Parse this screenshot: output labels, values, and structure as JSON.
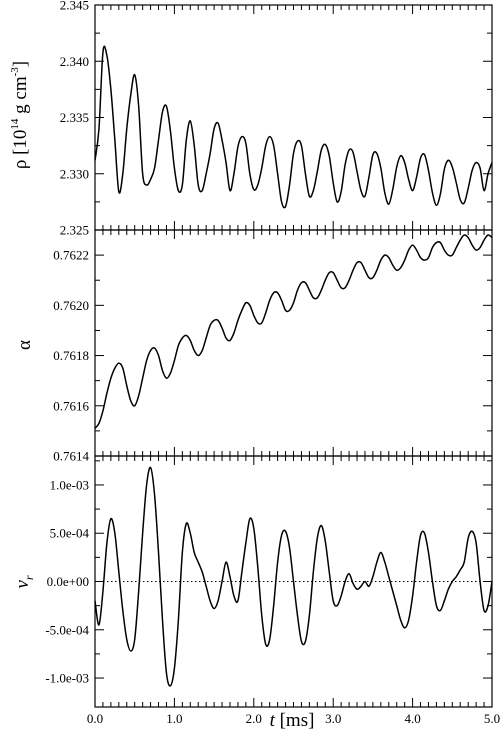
{
  "chart_data": [
    {
      "type": "line",
      "ylabel": "ρ [10¹⁴ g cm⁻³]",
      "ylabel_parts": {
        "base": "ρ [10",
        "exp1": "14",
        "mid": " g cm",
        "exp2": "-3",
        "end": "]"
      },
      "ylim": [
        2.325,
        2.345
      ],
      "yticks": [
        "2.325",
        "2.330",
        "2.335",
        "2.340",
        "2.345"
      ],
      "xlim": [
        0,
        5
      ],
      "x": [
        0.0,
        0.05,
        0.1,
        0.15,
        0.2,
        0.25,
        0.3,
        0.35,
        0.4,
        0.45,
        0.5,
        0.55,
        0.6,
        0.65,
        0.7,
        0.75,
        0.8,
        0.85,
        0.9,
        0.95,
        1.0,
        1.05,
        1.1,
        1.15,
        1.2,
        1.25,
        1.3,
        1.35,
        1.4,
        1.45,
        1.5,
        1.55,
        1.6,
        1.65,
        1.7,
        1.75,
        1.8,
        1.85,
        1.9,
        1.95,
        2.0,
        2.05,
        2.1,
        2.15,
        2.2,
        2.25,
        2.3,
        2.35,
        2.4,
        2.45,
        2.5,
        2.55,
        2.6,
        2.65,
        2.7,
        2.75,
        2.8,
        2.85,
        2.9,
        2.95,
        3.0,
        3.05,
        3.1,
        3.15,
        3.2,
        3.25,
        3.3,
        3.35,
        3.4,
        3.45,
        3.5,
        3.55,
        3.6,
        3.65,
        3.7,
        3.75,
        3.8,
        3.85,
        3.9,
        3.95,
        4.0,
        4.05,
        4.1,
        4.15,
        4.2,
        4.25,
        4.3,
        4.35,
        4.4,
        4.45,
        4.5,
        4.55,
        4.6,
        4.65,
        4.7,
        4.75,
        4.8,
        4.85,
        4.9,
        4.95,
        5.0
      ],
      "y": [
        2.3312,
        2.334,
        2.3408,
        2.3405,
        2.3375,
        2.333,
        2.3284,
        2.33,
        2.334,
        2.337,
        2.3388,
        2.336,
        2.33,
        2.329,
        2.3295,
        2.3305,
        2.333,
        2.3355,
        2.336,
        2.3338,
        2.3305,
        2.3285,
        2.329,
        2.333,
        2.3347,
        2.3325,
        2.329,
        2.3285,
        2.33,
        2.3318,
        2.334,
        2.3345,
        2.333,
        2.331,
        2.3285,
        2.33,
        2.3324,
        2.3333,
        2.3327,
        2.33,
        2.3286,
        2.329,
        2.3305,
        2.3325,
        2.3333,
        2.3325,
        2.33,
        2.3275,
        2.3271,
        2.329,
        2.3318,
        2.3329,
        2.3325,
        2.33,
        2.328,
        2.3285,
        2.3302,
        2.3321,
        2.3326,
        2.3316,
        2.3292,
        2.3275,
        2.3284,
        2.3308,
        2.3321,
        2.3319,
        2.3302,
        2.3285,
        2.328,
        2.3297,
        2.3317,
        2.3318,
        2.3305,
        2.3283,
        2.3273,
        2.3286,
        2.3306,
        2.3316,
        2.331,
        2.3295,
        2.3285,
        2.3297,
        2.3314,
        2.3317,
        2.3303,
        2.3283,
        2.3272,
        2.3282,
        2.3304,
        2.3312,
        2.3306,
        2.3292,
        2.3277,
        2.3274,
        2.3287,
        2.3303,
        2.331,
        2.3305,
        2.3285,
        2.33,
        2.331
      ]
    },
    {
      "type": "line",
      "ylabel": "α",
      "ylim": [
        0.7614,
        0.7623
      ],
      "yticks": [
        "0.7614",
        "0.7616",
        "0.7618",
        "0.7620",
        "0.7622"
      ],
      "xlim": [
        0,
        5
      ],
      "x": [
        0.0,
        0.05,
        0.1,
        0.15,
        0.2,
        0.25,
        0.3,
        0.35,
        0.4,
        0.45,
        0.5,
        0.55,
        0.6,
        0.65,
        0.7,
        0.75,
        0.8,
        0.85,
        0.9,
        0.95,
        1.0,
        1.05,
        1.1,
        1.15,
        1.2,
        1.25,
        1.3,
        1.35,
        1.4,
        1.45,
        1.5,
        1.55,
        1.6,
        1.65,
        1.7,
        1.75,
        1.8,
        1.85,
        1.9,
        1.95,
        2.0,
        2.05,
        2.1,
        2.15,
        2.2,
        2.25,
        2.3,
        2.35,
        2.4,
        2.45,
        2.5,
        2.55,
        2.6,
        2.65,
        2.7,
        2.75,
        2.8,
        2.85,
        2.9,
        2.95,
        3.0,
        3.05,
        3.1,
        3.15,
        3.2,
        3.25,
        3.3,
        3.35,
        3.4,
        3.45,
        3.5,
        3.55,
        3.6,
        3.65,
        3.7,
        3.75,
        3.8,
        3.85,
        3.9,
        3.95,
        4.0,
        4.05,
        4.1,
        4.15,
        4.2,
        4.25,
        4.3,
        4.35,
        4.4,
        4.45,
        4.5,
        4.55,
        4.6,
        4.65,
        4.7,
        4.75,
        4.8,
        4.85,
        4.9,
        4.95,
        5.0
      ],
      "y": [
        0.76151,
        0.76153,
        0.76158,
        0.76165,
        0.76171,
        0.76175,
        0.76177,
        0.76175,
        0.76168,
        0.76162,
        0.7616,
        0.76164,
        0.76171,
        0.76178,
        0.76182,
        0.76183,
        0.7618,
        0.76174,
        0.76171,
        0.76173,
        0.76178,
        0.76184,
        0.76187,
        0.76188,
        0.76186,
        0.76182,
        0.7618,
        0.76182,
        0.76187,
        0.76192,
        0.76194,
        0.76194,
        0.76191,
        0.76187,
        0.76186,
        0.76189,
        0.76194,
        0.76198,
        0.76201,
        0.762,
        0.76196,
        0.76193,
        0.76193,
        0.76197,
        0.76202,
        0.76205,
        0.76205,
        0.76202,
        0.76198,
        0.76198,
        0.76201,
        0.76206,
        0.76209,
        0.76209,
        0.76206,
        0.76203,
        0.76203,
        0.76206,
        0.7621,
        0.76213,
        0.76213,
        0.7621,
        0.76207,
        0.76207,
        0.7621,
        0.76214,
        0.76217,
        0.76217,
        0.76214,
        0.76211,
        0.76211,
        0.76214,
        0.76218,
        0.7622,
        0.76219,
        0.76216,
        0.76214,
        0.76215,
        0.76218,
        0.76222,
        0.76224,
        0.76222,
        0.76219,
        0.76218,
        0.76219,
        0.76223,
        0.76225,
        0.76225,
        0.76222,
        0.7622,
        0.7622,
        0.76223,
        0.76226,
        0.76228,
        0.76227,
        0.76224,
        0.76222,
        0.76223,
        0.76226,
        0.76228,
        0.76227
      ]
    },
    {
      "type": "line",
      "ylabel": "v_r",
      "ylabel_parts": {
        "base": "v",
        "sub": "r"
      },
      "ylim": [
        -0.0013,
        0.0013
      ],
      "yticks": [
        "-1.0e-03",
        "-5.0e-04",
        "0.0e+00",
        "5.0e-04",
        "1.0e-03"
      ],
      "xlim": [
        0,
        5
      ],
      "xticks": [
        "0.0",
        "1.0",
        "2.0",
        "3.0",
        "4.0",
        "5.0"
      ],
      "xlabel": "t [ms]",
      "xlabel_parts": {
        "var": "t",
        "unit": " [ms]"
      },
      "x": [
        0.0,
        0.05,
        0.1,
        0.15,
        0.2,
        0.25,
        0.3,
        0.35,
        0.4,
        0.45,
        0.5,
        0.55,
        0.6,
        0.65,
        0.7,
        0.75,
        0.8,
        0.85,
        0.9,
        0.95,
        1.0,
        1.05,
        1.1,
        1.15,
        1.2,
        1.25,
        1.3,
        1.35,
        1.4,
        1.45,
        1.5,
        1.55,
        1.6,
        1.65,
        1.7,
        1.75,
        1.8,
        1.85,
        1.9,
        1.95,
        2.0,
        2.05,
        2.1,
        2.15,
        2.2,
        2.25,
        2.3,
        2.35,
        2.4,
        2.45,
        2.5,
        2.55,
        2.6,
        2.65,
        2.7,
        2.75,
        2.8,
        2.85,
        2.9,
        2.95,
        3.0,
        3.05,
        3.1,
        3.15,
        3.2,
        3.25,
        3.3,
        3.35,
        3.4,
        3.45,
        3.5,
        3.55,
        3.6,
        3.65,
        3.7,
        3.75,
        3.8,
        3.85,
        3.9,
        3.95,
        4.0,
        4.05,
        4.1,
        4.15,
        4.2,
        4.25,
        4.3,
        4.35,
        4.4,
        4.45,
        4.5,
        4.55,
        4.6,
        4.65,
        4.7,
        4.75,
        4.8,
        4.85,
        4.9,
        4.95,
        5.0
      ],
      "y": [
        -0.0002,
        -0.00045,
        -0.0001,
        0.0004,
        0.00065,
        0.0005,
        0.0001,
        -0.0003,
        -0.0006,
        -0.00072,
        -0.0006,
        -0.0001,
        0.0005,
        0.001,
        0.00118,
        0.0009,
        0.0003,
        -0.0004,
        -0.00095,
        -0.00108,
        -0.0009,
        -0.0004,
        0.0003,
        0.0006,
        0.0005,
        0.0003,
        0.0002,
        0.0001,
        -5e-05,
        -0.0002,
        -0.00028,
        -0.0002,
        0.0,
        0.0002,
        5e-05,
        -0.00015,
        -0.0002,
        0.0001,
        0.0004,
        0.00065,
        0.00055,
        0.00015,
        -0.00035,
        -0.00065,
        -0.0006,
        -0.00025,
        0.0002,
        0.00048,
        0.00052,
        0.00035,
        0.0,
        -0.00035,
        -0.00062,
        -0.00062,
        -0.00035,
        0.0001,
        0.00045,
        0.00058,
        0.00042,
        0.0001,
        -0.0002,
        -0.00025,
        -0.00015,
        0.0,
        8e-05,
        -2e-05,
        -8e-05,
        -5e-05,
        0.0,
        -5e-05,
        5e-05,
        0.0002,
        0.0003,
        0.0002,
        5e-05,
        -0.0001,
        -0.00025,
        -0.0004,
        -0.00048,
        -0.0004,
        -0.00015,
        0.0002,
        0.00048,
        0.0005,
        0.0003,
        0.0,
        -0.00025,
        -0.0003,
        -0.0002,
        -8e-05,
        0.0,
        5e-05,
        0.00012,
        0.0002,
        0.00045,
        0.00052,
        0.0004,
        0.0,
        -0.0003,
        -0.00025,
        0.0
      ]
    }
  ]
}
